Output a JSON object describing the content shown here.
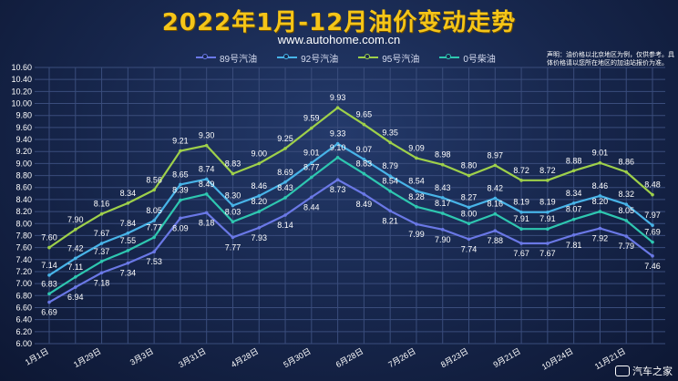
{
  "title": "2022年1月-12月油价变动走势",
  "subtitle": "www.autohome.com.cn",
  "disclaimer": "声明：油价格以北京地区为例，仅供参考。具体价格请以您所在地区的加油站报价为准。",
  "watermark": "汽车之家",
  "colors": {
    "89": "#6a78e6",
    "92": "#48b4e8",
    "95": "#9ed04a",
    "0": "#2ec7b0",
    "axis_text": "#ffffff",
    "grid": "#3a4d7c"
  },
  "chart_data": {
    "type": "line",
    "title": "2022年1月-12月油价变动走势",
    "ylim": [
      6.0,
      10.6
    ],
    "yticks": [
      "6.00",
      "6.20",
      "6.40",
      "6.60",
      "6.80",
      "7.00",
      "7.20",
      "7.40",
      "7.60",
      "7.80",
      "8.00",
      "8.20",
      "8.40",
      "8.60",
      "8.80",
      "9.00",
      "9.20",
      "9.40",
      "9.60",
      "9.80",
      "10.00",
      "10.20",
      "10.40",
      "10.60"
    ],
    "x_labels": [
      "1月1日",
      "1月29日",
      "3月3日",
      "3月31日",
      "4月28日",
      "5月30日",
      "6月28日",
      "7月26日",
      "8月23日",
      "9月21日",
      "10月24日",
      "11月21日"
    ],
    "n_points": 24,
    "grid": true,
    "legend_position": "top",
    "series": [
      {
        "name": "89号汽油",
        "key": "89",
        "values": [
          6.69,
          6.94,
          7.18,
          7.34,
          7.53,
          8.09,
          8.18,
          7.77,
          7.93,
          8.14,
          8.44,
          8.73,
          8.49,
          8.21,
          7.99,
          7.9,
          7.74,
          7.88,
          7.67,
          7.67,
          7.81,
          7.92,
          7.79,
          7.46
        ],
        "labels": [
          "6.69",
          "6.94",
          "7.18",
          "7.34",
          "7.53",
          "8.09",
          "8.18",
          "7.77",
          "7.93",
          "8.14",
          "8.44",
          "8.73",
          "8.49",
          "8.21",
          "7.99",
          "7.90",
          "7.74",
          "7.88",
          "7.67",
          "7.67",
          "7.81",
          "7.92",
          "7.79",
          "7.46"
        ]
      },
      {
        "name": "92号汽油",
        "key": "92",
        "values": [
          7.14,
          7.42,
          7.67,
          7.84,
          8.05,
          8.65,
          8.74,
          8.3,
          8.46,
          8.69,
          9.01,
          9.33,
          9.07,
          8.79,
          8.54,
          8.43,
          8.27,
          8.42,
          8.19,
          8.19,
          8.34,
          8.46,
          8.32,
          7.97
        ],
        "labels": [
          "7.14",
          "7.42",
          "7.67",
          "7.84",
          "8.05",
          "8.65",
          "8.74",
          "8.30",
          "8.46",
          "8.69",
          "9.01",
          "9.33",
          "9.07",
          "8.79",
          "8.54",
          "8.43",
          "8.27",
          "8.42",
          "8.19",
          "8.19",
          "8.34",
          "8.46",
          "8.32",
          "7.97"
        ]
      },
      {
        "name": "95号汽油",
        "key": "95",
        "values": [
          7.6,
          7.9,
          8.16,
          8.34,
          8.56,
          9.21,
          9.3,
          8.83,
          9.0,
          9.25,
          9.59,
          9.93,
          9.65,
          9.35,
          9.09,
          8.98,
          8.8,
          8.97,
          8.72,
          8.72,
          8.88,
          9.01,
          8.86,
          8.48
        ],
        "labels": [
          "7.60",
          "7.90",
          "8.16",
          "8.34",
          "8.56",
          "9.21",
          "9.30",
          "8.83",
          "9.00",
          "9.25",
          "9.59",
          "9.93",
          "9.65",
          "9.35",
          "9.09",
          "8.98",
          "8.80",
          "8.97",
          "8.72",
          "8.72",
          "8.88",
          "9.01",
          "8.86",
          "8.48"
        ]
      },
      {
        "name": "0号柴油",
        "key": "0",
        "values": [
          6.83,
          7.11,
          7.37,
          7.55,
          7.77,
          8.39,
          8.49,
          8.03,
          8.2,
          8.43,
          8.77,
          9.1,
          8.83,
          8.54,
          8.28,
          8.17,
          8.0,
          8.16,
          7.91,
          7.91,
          8.07,
          8.2,
          8.05,
          7.69
        ],
        "labels": [
          "6.83",
          "7.11",
          "7.37",
          "7.55",
          "7.77",
          "8.39",
          "8.49",
          "8.03",
          "8.20",
          "8.43",
          "8.77",
          "9.10",
          "8.83",
          "8.54",
          "8.28",
          "8.17",
          "8.00",
          "8.16",
          "7.91",
          "7.91",
          "8.07",
          "8.20",
          "8.05",
          "7.69"
        ]
      }
    ]
  }
}
